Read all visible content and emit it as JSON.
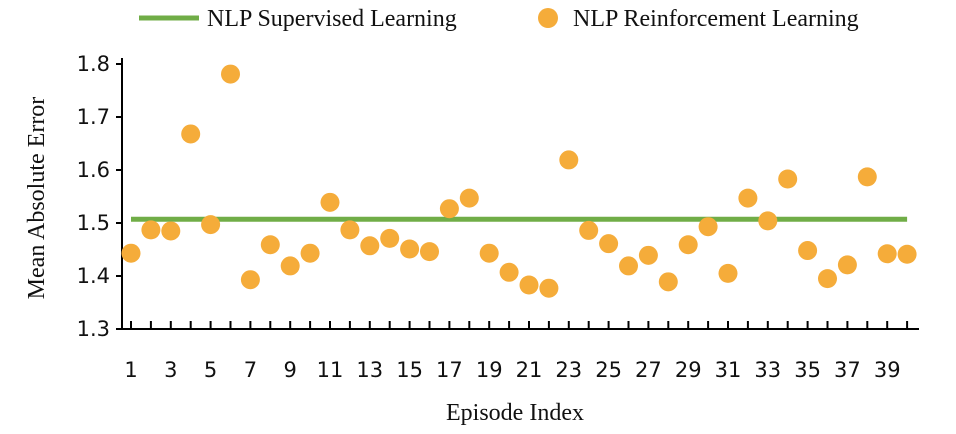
{
  "chart_data": {
    "type": "scatter",
    "xlabel": "Episode Index",
    "ylabel": "Mean Absolute Error",
    "ylim": [
      1.3,
      1.8
    ],
    "xlim": [
      1,
      40
    ],
    "grid": false,
    "legend_position": "top",
    "y_ticks": [
      "1.3",
      "1.4",
      "1.5",
      "1.6",
      "1.7",
      "1.8"
    ],
    "x_tick_labels": [
      "1",
      "3",
      "5",
      "7",
      "9",
      "11",
      "13",
      "15",
      "17",
      "19",
      "21",
      "23",
      "25",
      "27",
      "29",
      "31",
      "33",
      "35",
      "37",
      "39"
    ],
    "series": [
      {
        "name": "NLP Supervised Learning",
        "kind": "line",
        "color": "#70ad47",
        "x": [
          1,
          40
        ],
        "values": [
          1.507,
          1.507
        ]
      },
      {
        "name": "NLP Reinforcement Learning",
        "kind": "scatter",
        "color": "#f5ac3a",
        "x": [
          1,
          2,
          3,
          4,
          5,
          6,
          7,
          8,
          9,
          10,
          11,
          12,
          13,
          14,
          15,
          16,
          17,
          18,
          19,
          20,
          21,
          22,
          23,
          24,
          25,
          26,
          27,
          28,
          29,
          30,
          31,
          32,
          33,
          34,
          35,
          36,
          37,
          38,
          39,
          40
        ],
        "values": [
          1.443,
          1.487,
          1.485,
          1.668,
          1.497,
          1.781,
          1.393,
          1.459,
          1.419,
          1.443,
          1.539,
          1.487,
          1.457,
          1.471,
          1.451,
          1.446,
          1.527,
          1.547,
          1.443,
          1.407,
          1.383,
          1.377,
          1.619,
          1.486,
          1.461,
          1.419,
          1.439,
          1.389,
          1.459,
          1.493,
          1.405,
          1.547,
          1.504,
          1.583,
          1.448,
          1.395,
          1.421,
          1.587,
          1.442,
          1.441
        ]
      }
    ]
  }
}
